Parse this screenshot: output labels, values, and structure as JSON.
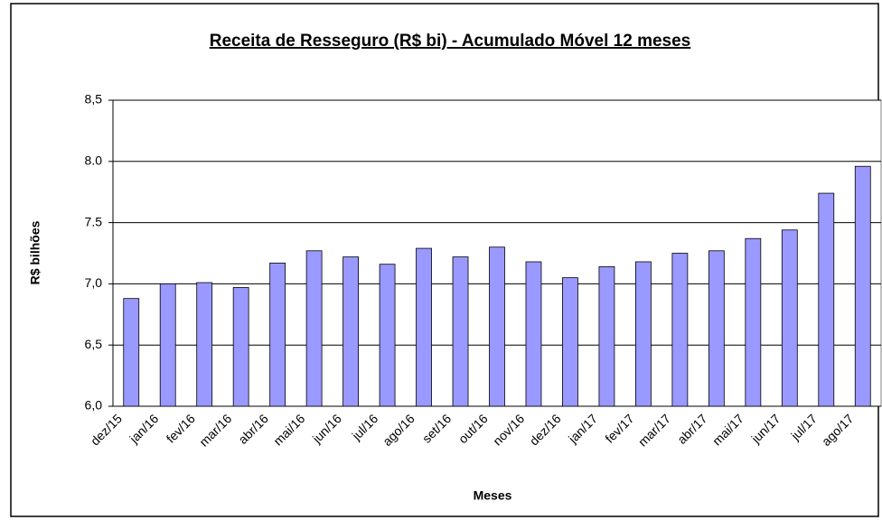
{
  "chart_data": {
    "type": "bar",
    "title": "Receita de Resseguro (R$ bi) - Acumulado Móvel 12 meses",
    "x_label": "Meses",
    "y_label": "R$ bilhões",
    "categories": [
      "dez/15",
      "jan/16",
      "fev/16",
      "mar/16",
      "abr/16",
      "mai/16",
      "jun/16",
      "jul/16",
      "ago/16",
      "set/16",
      "out/16",
      "nov/16",
      "dez/16",
      "jan/17",
      "fev/17",
      "mar/17",
      "abr/17",
      "mai/17",
      "jun/17",
      "jul/17",
      "ago/17"
    ],
    "values": [
      6.88,
      7.0,
      7.01,
      6.97,
      7.17,
      7.27,
      7.22,
      7.16,
      7.29,
      7.22,
      7.3,
      7.18,
      7.05,
      7.14,
      7.18,
      7.25,
      7.27,
      7.37,
      7.44,
      7.74,
      7.96
    ],
    "color": "#9999ff",
    "ylim": [
      6.0,
      8.5
    ],
    "yticks": [
      {
        "value": 6.0,
        "label": "6,0"
      },
      {
        "value": 6.5,
        "label": "6,5"
      },
      {
        "value": 7.0,
        "label": "7,0"
      },
      7.5,
      {
        "value": 8.0,
        "label": "8.0"
      },
      {
        "value": 8.5,
        "label": "8,5"
      }
    ],
    "grid": true
  }
}
